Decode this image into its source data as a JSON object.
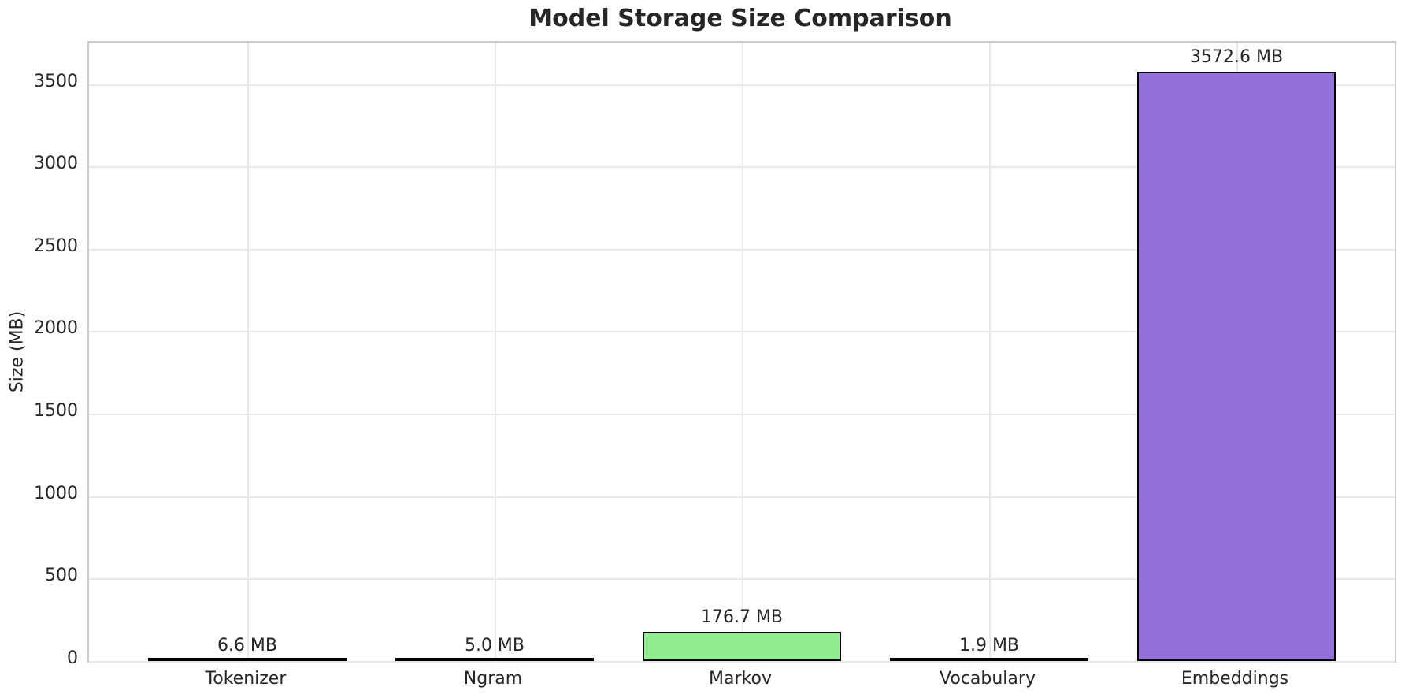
{
  "chart_data": {
    "type": "bar",
    "title": "Model Storage Size Comparison",
    "xlabel": "",
    "ylabel": "Size (MB)",
    "categories": [
      "Tokenizer",
      "Ngram",
      "Markov",
      "Vocabulary",
      "Embeddings"
    ],
    "values": [
      6.6,
      5.0,
      176.7,
      1.9,
      3572.6
    ],
    "value_labels": [
      "6.6 MB",
      "5.0 MB",
      "176.7 MB",
      "1.9 MB",
      "3572.6 MB"
    ],
    "unit": "MB",
    "yticks": [
      0,
      500,
      1000,
      1500,
      2000,
      2500,
      3000,
      3500
    ],
    "ylim": [
      0,
      3751
    ],
    "xlim": [
      -0.64,
      4.64
    ],
    "bar_width_units": 0.8,
    "grid": true,
    "legend": "none",
    "bar_colors": [
      "#87CEEB",
      "#F08080",
      "#90EE90",
      "#FFD700",
      "#9370DB"
    ],
    "bar_edge_color": "#000000",
    "grid_color": "#e8e8e8",
    "spine_color": "#cccccc",
    "text_color": "#262626",
    "background_color": "#ffffff"
  }
}
